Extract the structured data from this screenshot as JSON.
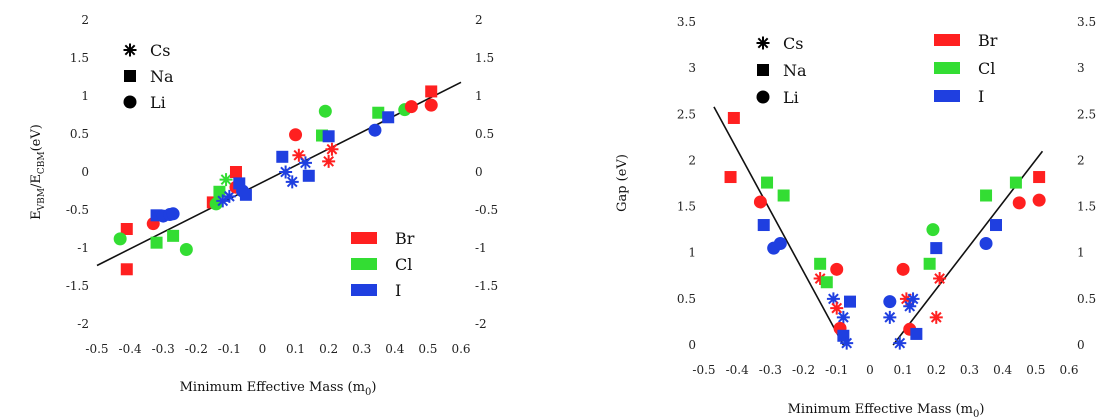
{
  "chart_data": [
    {
      "type": "scatter",
      "xlabel_main": "Minimum Effective Mass (m",
      "xlabel_sub": "0",
      "xlabel_end": ")",
      "ylabel_main": "E",
      "ylabel_sub1": "VBM",
      "ylabel_mid": "/E",
      "ylabel_sub2": "CBM",
      "ylabel_end": "(eV)",
      "xlim": [
        -0.5,
        0.6
      ],
      "ylim": [
        -2,
        2
      ],
      "xticks": [
        "-0.5",
        "-0.4",
        "-0.3",
        "-0.2",
        "-0.1",
        "0",
        "0.1",
        "0.2",
        "0.3",
        "0.4",
        "0.5",
        "0.6"
      ],
      "yticks": [
        "-2",
        "-1.5",
        "-1",
        "-0.5",
        "0",
        "0.5",
        "1",
        "1.5",
        "2"
      ],
      "marker_legend": [
        {
          "label": "Cs",
          "marker": "star"
        },
        {
          "label": "Na",
          "marker": "square"
        },
        {
          "label": "Li",
          "marker": "circle"
        }
      ],
      "color_legend": [
        {
          "label": "Br",
          "color": "#ff2020"
        },
        {
          "label": "Cl",
          "color": "#33dd33"
        },
        {
          "label": "I",
          "color": "#1f3fe0"
        }
      ],
      "fit_line": [
        [
          -0.5,
          -1.23
        ],
        [
          0.6,
          1.18
        ]
      ],
      "points": [
        {
          "x": -0.41,
          "y": -0.75,
          "m": "square",
          "c": "Br"
        },
        {
          "x": -0.41,
          "y": -1.28,
          "m": "square",
          "c": "Br"
        },
        {
          "x": -0.43,
          "y": -0.88,
          "m": "circle",
          "c": "Cl"
        },
        {
          "x": -0.32,
          "y": -0.93,
          "m": "square",
          "c": "Cl"
        },
        {
          "x": -0.27,
          "y": -0.84,
          "m": "square",
          "c": "Cl"
        },
        {
          "x": -0.23,
          "y": -1.02,
          "m": "circle",
          "c": "Cl"
        },
        {
          "x": -0.33,
          "y": -0.68,
          "m": "circle",
          "c": "Br"
        },
        {
          "x": -0.32,
          "y": -0.57,
          "m": "square",
          "c": "I"
        },
        {
          "x": -0.3,
          "y": -0.58,
          "m": "circle",
          "c": "I"
        },
        {
          "x": -0.28,
          "y": -0.56,
          "m": "circle",
          "c": "I"
        },
        {
          "x": -0.27,
          "y": -0.55,
          "m": "circle",
          "c": "I"
        },
        {
          "x": -0.15,
          "y": -0.4,
          "m": "square",
          "c": "Br"
        },
        {
          "x": -0.14,
          "y": -0.42,
          "m": "circle",
          "c": "Cl"
        },
        {
          "x": -0.13,
          "y": -0.26,
          "m": "square",
          "c": "Cl"
        },
        {
          "x": -0.11,
          "y": -0.1,
          "m": "star",
          "c": "Cl"
        },
        {
          "x": -0.12,
          "y": -0.38,
          "m": "star",
          "c": "I"
        },
        {
          "x": -0.1,
          "y": -0.32,
          "m": "star",
          "c": "I"
        },
        {
          "x": -0.08,
          "y": 0.0,
          "m": "square",
          "c": "Br"
        },
        {
          "x": -0.08,
          "y": -0.2,
          "m": "circle",
          "c": "Br"
        },
        {
          "x": -0.07,
          "y": -0.15,
          "m": "square",
          "c": "I"
        },
        {
          "x": -0.06,
          "y": -0.25,
          "m": "circle",
          "c": "I"
        },
        {
          "x": -0.05,
          "y": -0.3,
          "m": "square",
          "c": "I"
        },
        {
          "x": 0.06,
          "y": 0.2,
          "m": "square",
          "c": "I"
        },
        {
          "x": 0.07,
          "y": 0.0,
          "m": "star",
          "c": "I"
        },
        {
          "x": 0.09,
          "y": -0.13,
          "m": "star",
          "c": "I"
        },
        {
          "x": 0.1,
          "y": 0.49,
          "m": "circle",
          "c": "Br"
        },
        {
          "x": 0.11,
          "y": 0.22,
          "m": "star",
          "c": "Br"
        },
        {
          "x": 0.13,
          "y": 0.12,
          "m": "star",
          "c": "I"
        },
        {
          "x": 0.14,
          "y": -0.05,
          "m": "square",
          "c": "I"
        },
        {
          "x": 0.18,
          "y": 0.48,
          "m": "square",
          "c": "Cl"
        },
        {
          "x": 0.19,
          "y": 0.8,
          "m": "circle",
          "c": "Cl"
        },
        {
          "x": 0.2,
          "y": 0.14,
          "m": "star",
          "c": "Br"
        },
        {
          "x": 0.21,
          "y": 0.3,
          "m": "star",
          "c": "Br"
        },
        {
          "x": 0.2,
          "y": 0.47,
          "m": "square",
          "c": "I"
        },
        {
          "x": 0.34,
          "y": 0.55,
          "m": "circle",
          "c": "I"
        },
        {
          "x": 0.35,
          "y": 0.78,
          "m": "square",
          "c": "Cl"
        },
        {
          "x": 0.38,
          "y": 0.72,
          "m": "square",
          "c": "I"
        },
        {
          "x": 0.43,
          "y": 0.82,
          "m": "circle",
          "c": "Cl"
        },
        {
          "x": 0.45,
          "y": 0.86,
          "m": "circle",
          "c": "Br"
        },
        {
          "x": 0.51,
          "y": 1.06,
          "m": "square",
          "c": "Br"
        },
        {
          "x": 0.51,
          "y": 0.88,
          "m": "circle",
          "c": "Br"
        }
      ]
    },
    {
      "type": "scatter",
      "xlabel_main": "Minimum Effective Mass (m",
      "xlabel_sub": "0",
      "xlabel_end": ")",
      "ylabel": "Gap (eV)",
      "xlim": [
        -0.5,
        0.6
      ],
      "ylim": [
        0,
        3.5
      ],
      "xticks": [
        "-0.5",
        "-0.4",
        "-0.3",
        "-0.2",
        "-0.1",
        "0",
        "0.1",
        "0.2",
        "0.3",
        "0.4",
        "0.5",
        "0.6"
      ],
      "yticks": [
        "0",
        "0.5",
        "1",
        "1.5",
        "2",
        "2.5",
        "3",
        "3.5"
      ],
      "marker_legend": [
        {
          "label": "Cs",
          "marker": "star"
        },
        {
          "label": "Na",
          "marker": "square"
        },
        {
          "label": "Li",
          "marker": "circle"
        }
      ],
      "color_legend": [
        {
          "label": "Br",
          "color": "#ff2020"
        },
        {
          "label": "Cl",
          "color": "#33dd33"
        },
        {
          "label": "I",
          "color": "#1f3fe0"
        }
      ],
      "fit_lines": [
        [
          [
            -0.47,
            2.58
          ],
          [
            -0.08,
            0.0
          ]
        ],
        [
          [
            0.07,
            0.0
          ],
          [
            0.52,
            2.1
          ]
        ]
      ],
      "points": [
        {
          "x": -0.41,
          "y": 2.46,
          "m": "square",
          "c": "Br"
        },
        {
          "x": -0.42,
          "y": 1.82,
          "m": "square",
          "c": "Br"
        },
        {
          "x": -0.31,
          "y": 1.76,
          "m": "square",
          "c": "Cl"
        },
        {
          "x": -0.26,
          "y": 1.62,
          "m": "square",
          "c": "Cl"
        },
        {
          "x": -0.33,
          "y": 1.55,
          "m": "circle",
          "c": "Br"
        },
        {
          "x": -0.32,
          "y": 1.3,
          "m": "square",
          "c": "I"
        },
        {
          "x": -0.29,
          "y": 1.05,
          "m": "circle",
          "c": "I"
        },
        {
          "x": -0.27,
          "y": 1.1,
          "m": "circle",
          "c": "I"
        },
        {
          "x": -0.15,
          "y": 0.88,
          "m": "square",
          "c": "Cl"
        },
        {
          "x": -0.15,
          "y": 0.72,
          "m": "star",
          "c": "Br"
        },
        {
          "x": -0.13,
          "y": 0.68,
          "m": "square",
          "c": "Cl"
        },
        {
          "x": -0.1,
          "y": 0.82,
          "m": "circle",
          "c": "Br"
        },
        {
          "x": -0.11,
          "y": 0.5,
          "m": "star",
          "c": "I"
        },
        {
          "x": -0.1,
          "y": 0.4,
          "m": "star",
          "c": "Br"
        },
        {
          "x": -0.08,
          "y": 0.3,
          "m": "star",
          "c": "I"
        },
        {
          "x": -0.09,
          "y": 0.18,
          "m": "circle",
          "c": "Br"
        },
        {
          "x": -0.08,
          "y": 0.1,
          "m": "square",
          "c": "I"
        },
        {
          "x": -0.07,
          "y": 0.02,
          "m": "star",
          "c": "I"
        },
        {
          "x": -0.06,
          "y": 0.47,
          "m": "square",
          "c": "I"
        },
        {
          "x": 0.06,
          "y": 0.47,
          "m": "circle",
          "c": "I"
        },
        {
          "x": 0.06,
          "y": 0.3,
          "m": "star",
          "c": "I"
        },
        {
          "x": 0.1,
          "y": 0.82,
          "m": "circle",
          "c": "Br"
        },
        {
          "x": 0.11,
          "y": 0.5,
          "m": "star",
          "c": "Br"
        },
        {
          "x": 0.12,
          "y": 0.42,
          "m": "star",
          "c": "I"
        },
        {
          "x": 0.13,
          "y": 0.5,
          "m": "star",
          "c": "I"
        },
        {
          "x": 0.12,
          "y": 0.17,
          "m": "circle",
          "c": "Br"
        },
        {
          "x": 0.14,
          "y": 0.12,
          "m": "square",
          "c": "I"
        },
        {
          "x": 0.09,
          "y": 0.02,
          "m": "star",
          "c": "I"
        },
        {
          "x": 0.18,
          "y": 0.88,
          "m": "square",
          "c": "Cl"
        },
        {
          "x": 0.19,
          "y": 1.25,
          "m": "circle",
          "c": "Cl"
        },
        {
          "x": 0.2,
          "y": 1.05,
          "m": "square",
          "c": "I"
        },
        {
          "x": 0.21,
          "y": 0.72,
          "m": "star",
          "c": "Br"
        },
        {
          "x": 0.2,
          "y": 0.3,
          "m": "star",
          "c": "Br"
        },
        {
          "x": 0.35,
          "y": 1.62,
          "m": "square",
          "c": "Cl"
        },
        {
          "x": 0.35,
          "y": 1.1,
          "m": "circle",
          "c": "I"
        },
        {
          "x": 0.38,
          "y": 1.3,
          "m": "square",
          "c": "I"
        },
        {
          "x": 0.44,
          "y": 1.76,
          "m": "square",
          "c": "Cl"
        },
        {
          "x": 0.45,
          "y": 1.54,
          "m": "circle",
          "c": "Br"
        },
        {
          "x": 0.51,
          "y": 1.82,
          "m": "square",
          "c": "Br"
        },
        {
          "x": 0.51,
          "y": 1.57,
          "m": "circle",
          "c": "Br"
        }
      ]
    }
  ]
}
